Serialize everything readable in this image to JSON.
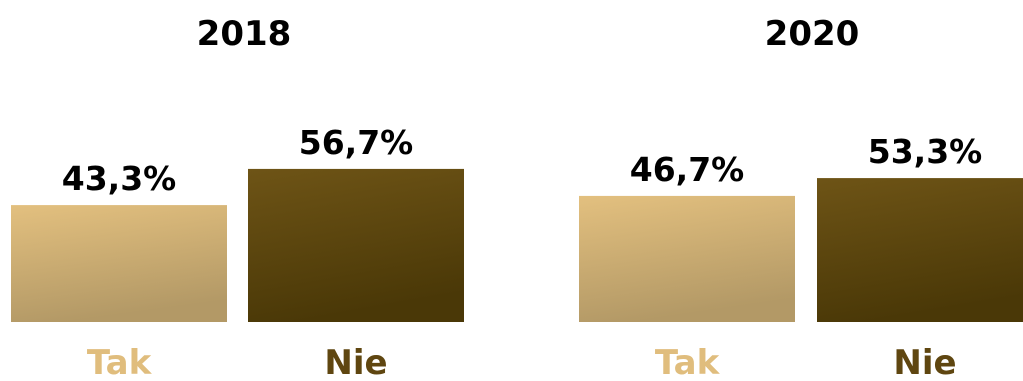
{
  "chart_data": [
    {
      "type": "bar",
      "title": "2018",
      "categories": [
        "Tak",
        "Nie"
      ],
      "values": [
        43.3,
        56.7
      ],
      "value_labels": [
        "43,3%",
        "56,7%"
      ],
      "ylim": [
        0,
        100
      ],
      "grid": false,
      "legend": "none"
    },
    {
      "type": "bar",
      "title": "2020",
      "categories": [
        "Tak",
        "Nie"
      ],
      "values": [
        46.7,
        53.3
      ],
      "value_labels": [
        "46,7%",
        "53,3%"
      ],
      "ylim": [
        0,
        100
      ],
      "grid": false,
      "legend": "none"
    }
  ],
  "colors": {
    "tak_top": "#e3c07f",
    "tak_bottom": "#b39966",
    "tak_label": "#e0bd7d",
    "nie_top": "#6e5416",
    "nie_bottom": "#4a3807",
    "nie_label": "#5f4610"
  }
}
